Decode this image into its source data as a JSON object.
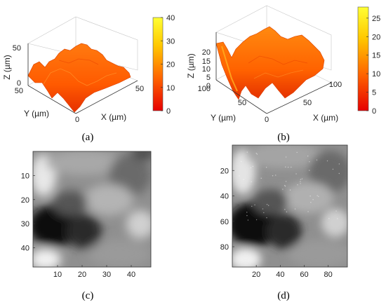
{
  "chart_data": [
    {
      "type": "surface",
      "caption": "(a)",
      "axes": {
        "x": {
          "label": "X (µm)",
          "ticks": [
            "0",
            "50"
          ],
          "range": [
            0,
            50
          ]
        },
        "y": {
          "label": "Y (µm)",
          "ticks": [
            "0",
            "50"
          ],
          "range": [
            0,
            50
          ]
        },
        "z": {
          "label": "Z (µm)",
          "ticks": [
            "0",
            "50"
          ],
          "range": [
            0,
            50
          ]
        }
      },
      "colorbar": {
        "ticks": [
          "0",
          "10",
          "20",
          "30",
          "40"
        ],
        "range": [
          0,
          40
        ],
        "colors": [
          "#e60000",
          "#ff6400",
          "#ffc800",
          "#ffff33"
        ]
      }
    },
    {
      "type": "surface",
      "caption": "(b)",
      "axes": {
        "x": {
          "label": "X (µm)",
          "ticks": [
            "0",
            "50",
            "100"
          ],
          "range": [
            0,
            100
          ]
        },
        "y": {
          "label": "Y (µm)",
          "ticks": [
            "0",
            "50",
            "100"
          ],
          "range": [
            0,
            100
          ]
        },
        "z": {
          "label": "Z (µm)",
          "ticks": [
            "0",
            "5",
            "10",
            "15",
            "20"
          ],
          "range": [
            0,
            25
          ]
        }
      },
      "colorbar": {
        "ticks": [
          "0",
          "5",
          "10",
          "15",
          "20",
          "25"
        ],
        "range": [
          0,
          28
        ],
        "colors": [
          "#e60000",
          "#ff6400",
          "#ffc800",
          "#ffff33"
        ]
      }
    },
    {
      "type": "heatmap",
      "caption": "(c)",
      "colormap": "gray",
      "xticks": [
        "10",
        "20",
        "30",
        "40"
      ],
      "yticks": [
        "10",
        "20",
        "30",
        "40"
      ],
      "xrange": [
        0,
        48
      ],
      "yrange": [
        0,
        48
      ]
    },
    {
      "type": "heatmap",
      "caption": "(d)",
      "colormap": "gray",
      "xticks": [
        "20",
        "40",
        "60",
        "80"
      ],
      "yticks": [
        "20",
        "40",
        "60",
        "80"
      ],
      "xrange": [
        0,
        96
      ],
      "yrange": [
        0,
        96
      ]
    }
  ]
}
